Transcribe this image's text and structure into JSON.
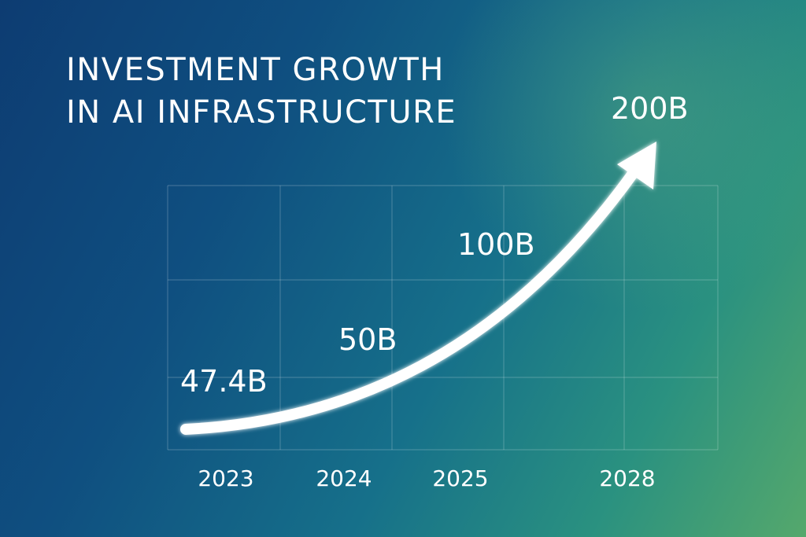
{
  "title_lines": [
    "INVESTMENT GROWTH",
    "IN AI INFRASTRUCTURE"
  ],
  "chart_data": {
    "type": "line",
    "title": "INVESTMENT GROWTH IN AI INFRASTRUCTURE",
    "x": [
      "2023",
      "2024",
      "2025",
      "2028"
    ],
    "values": [
      47.4,
      50,
      100,
      200
    ],
    "data_labels": [
      "47.4B",
      "50B",
      "100B",
      "200B"
    ],
    "unit": "B",
    "grid": true,
    "legend": "none",
    "series_color": "#ffffff",
    "background_colors": [
      "#0d3c72",
      "#16708a",
      "#55a86c"
    ]
  }
}
